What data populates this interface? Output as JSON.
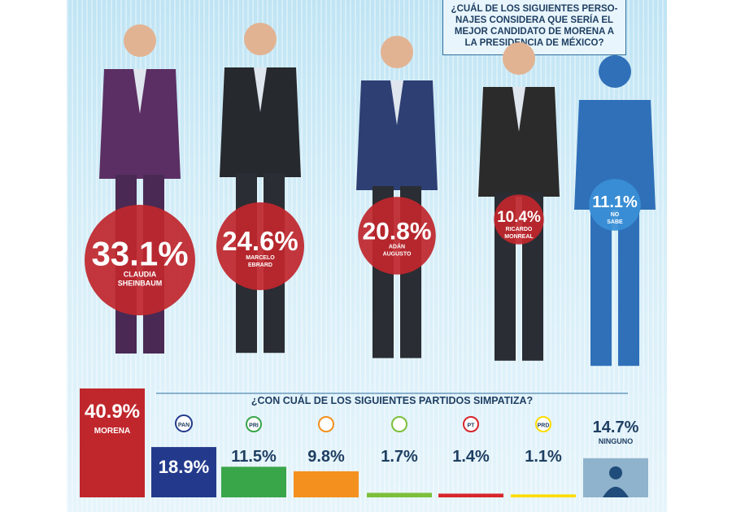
{
  "question1": "¿CUÁL DE LOS SIGUIENTES PERSO- NAJES CONSIDERA QUE SERÍA EL MEJOR CANDIDATO DE MORENA A LA PRESIDENCIA DE MÉXICO?",
  "question2": "¿CON CUÁL DE LOS SIGUIENTES PARTIDOS SIMPATIZA?",
  "chart_data": [
    {
      "type": "bar",
      "title": "¿CUÁL DE LOS SIGUIENTES PERSO- NAJES CONSIDERA QUE SERÍA EL MEJOR CANDIDATO DE MORENA A LA PRESIDENCIA DE MÉXICO?",
      "categories": [
        "CLAUDIA SHEINBAUM",
        "MARCELO EBRARD",
        "ADÁN AUGUSTO",
        "RICARDO MONREAL",
        "NO SABE"
      ],
      "values": [
        33.1,
        24.6,
        20.8,
        10.4,
        11.1
      ],
      "value_labels": [
        "33.1%",
        "24.6%",
        "20.8%",
        "10.4%",
        "11.1%"
      ],
      "colors": [
        "#c0272d",
        "#c0272d",
        "#c0272d",
        "#c0272d",
        "#3a8fd6"
      ]
    },
    {
      "type": "bar",
      "title": "¿CON CUÁL DE LOS SIGUIENTES PARTIDOS SIMPATIZA?",
      "categories": [
        "MORENA",
        "PAN",
        "PRI",
        "MC",
        "PVEM",
        "PT",
        "PRD",
        "NINGUNO"
      ],
      "values": [
        40.9,
        18.9,
        11.5,
        9.8,
        1.7,
        1.4,
        1.1,
        14.7
      ],
      "value_labels": [
        "40.9%",
        "18.9%",
        "11.5%",
        "9.8%",
        "1.7%",
        "1.4%",
        "1.1%",
        "14.7%"
      ],
      "category_labels_shown": [
        "MORENA",
        "PAN",
        "PRI",
        "",
        "",
        "PT",
        "PRD",
        "NINGUNO"
      ],
      "colors": [
        "#c0272d",
        "#233a8c",
        "#3aa64a",
        "#f4901e",
        "#7dbf3b",
        "#d7262c",
        "#ffdc00",
        "#8fb3cc"
      ]
    }
  ]
}
